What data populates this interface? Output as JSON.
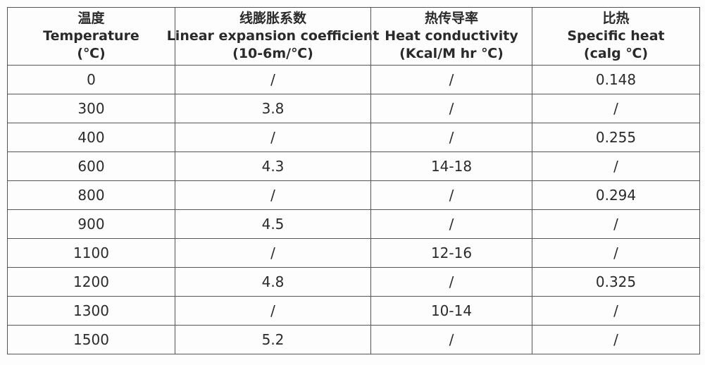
{
  "table": {
    "header": [
      [
        "温度",
        "Temperature",
        "(℃)"
      ],
      [
        "线膨胀系数",
        "Linear expansion coefficient",
        "(10-6m/℃)"
      ],
      [
        "热传导率",
        "Heat conductivity",
        "(Kcal/M hr ℃)"
      ],
      [
        "比热",
        "Specific heat",
        "(calg ℃)"
      ]
    ],
    "rows": [
      [
        "0",
        "/",
        "/",
        "0.148"
      ],
      [
        "300",
        "3.8",
        "/",
        "/"
      ],
      [
        "400",
        "/",
        "/",
        "0.255"
      ],
      [
        "600",
        "4.3",
        "14-18",
        "/"
      ],
      [
        "800",
        "/",
        "/",
        "0.294"
      ],
      [
        "900",
        "4.5",
        "/",
        "/"
      ],
      [
        "1100",
        "/",
        "12-16",
        "/"
      ],
      [
        "1200",
        "4.8",
        "/",
        "0.325"
      ],
      [
        "1300",
        "/",
        "10-14",
        "/"
      ],
      [
        "1500",
        "5.2",
        "/",
        "/"
      ]
    ]
  }
}
